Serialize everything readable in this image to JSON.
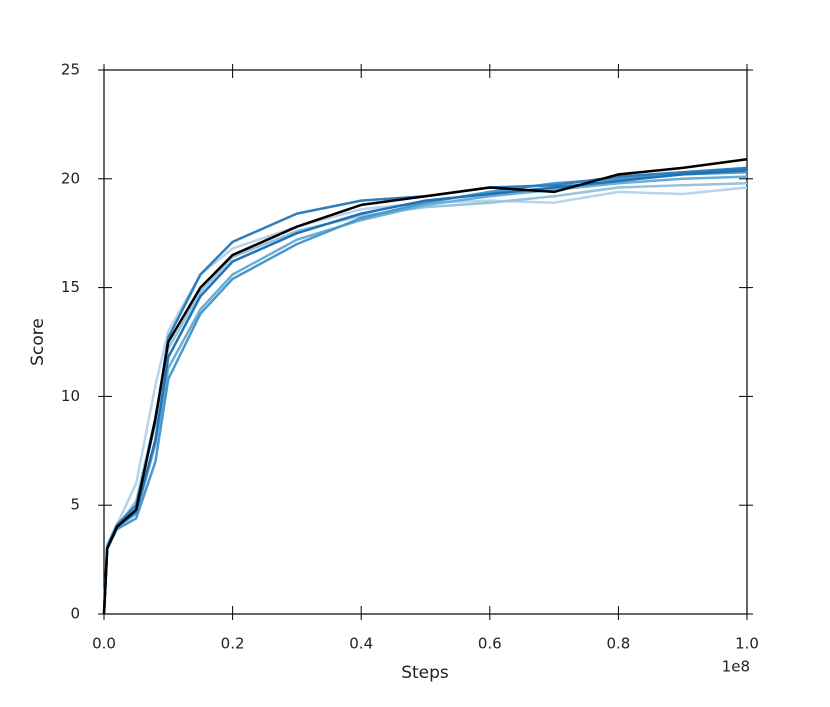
{
  "chart_data": {
    "type": "line",
    "xlabel": "Steps",
    "ylabel": "Score",
    "x_offset_label": "1e8",
    "x": [
      0,
      0.005,
      0.02,
      0.05,
      0.08,
      0.1,
      0.15,
      0.2,
      0.3,
      0.4,
      0.5,
      0.6,
      0.7,
      0.8,
      0.9,
      1.0
    ],
    "series": [
      {
        "color": "#b7d4ea",
        "values": [
          0,
          3.2,
          4.1,
          6.0,
          10.5,
          13.0,
          15.6,
          16.8,
          17.8,
          18.6,
          18.9,
          19.0,
          18.9,
          19.4,
          19.3,
          19.6
        ]
      },
      {
        "color": "#94c4df",
        "values": [
          0,
          3.1,
          4.0,
          5.2,
          9.0,
          12.2,
          14.8,
          16.4,
          17.6,
          18.3,
          18.7,
          18.9,
          19.2,
          19.6,
          19.7,
          19.8
        ]
      },
      {
        "color": "#6aaed6",
        "values": [
          0,
          3.0,
          4.0,
          4.6,
          7.8,
          11.3,
          14.0,
          15.6,
          17.2,
          18.1,
          18.8,
          19.2,
          19.5,
          19.8,
          20.0,
          20.1
        ]
      },
      {
        "color": "#4a98c9",
        "values": [
          0,
          3.0,
          3.9,
          4.4,
          7.0,
          10.8,
          13.8,
          15.4,
          17.0,
          18.2,
          18.9,
          19.4,
          19.8,
          20.0,
          20.2,
          20.3
        ]
      },
      {
        "color": "#2e7ebc",
        "values": [
          0,
          3.1,
          4.1,
          5.0,
          8.8,
          12.7,
          15.6,
          17.1,
          18.4,
          19.0,
          19.2,
          19.6,
          19.7,
          20.1,
          20.3,
          20.5
        ]
      },
      {
        "color": "#2171b5",
        "values": [
          0,
          3.0,
          4.0,
          4.7,
          8.0,
          11.8,
          14.6,
          16.2,
          17.5,
          18.4,
          19.0,
          19.3,
          19.6,
          19.9,
          20.2,
          20.4
        ]
      },
      {
        "color": "#000000",
        "values": [
          0,
          3.0,
          4.0,
          4.8,
          9.0,
          12.5,
          15.0,
          16.5,
          17.8,
          18.8,
          19.2,
          19.6,
          19.4,
          20.2,
          20.5,
          20.9
        ]
      }
    ],
    "xlim": [
      0,
      1.0
    ],
    "xticks": [
      {
        "value": 0,
        "label": "0.0"
      },
      0.2,
      0.4,
      0.6,
      0.8,
      {
        "value": 1.0,
        "label": "1.0"
      }
    ],
    "ylim": [
      0,
      25
    ],
    "yticks": [
      0,
      5,
      10,
      15,
      20,
      25
    ]
  }
}
